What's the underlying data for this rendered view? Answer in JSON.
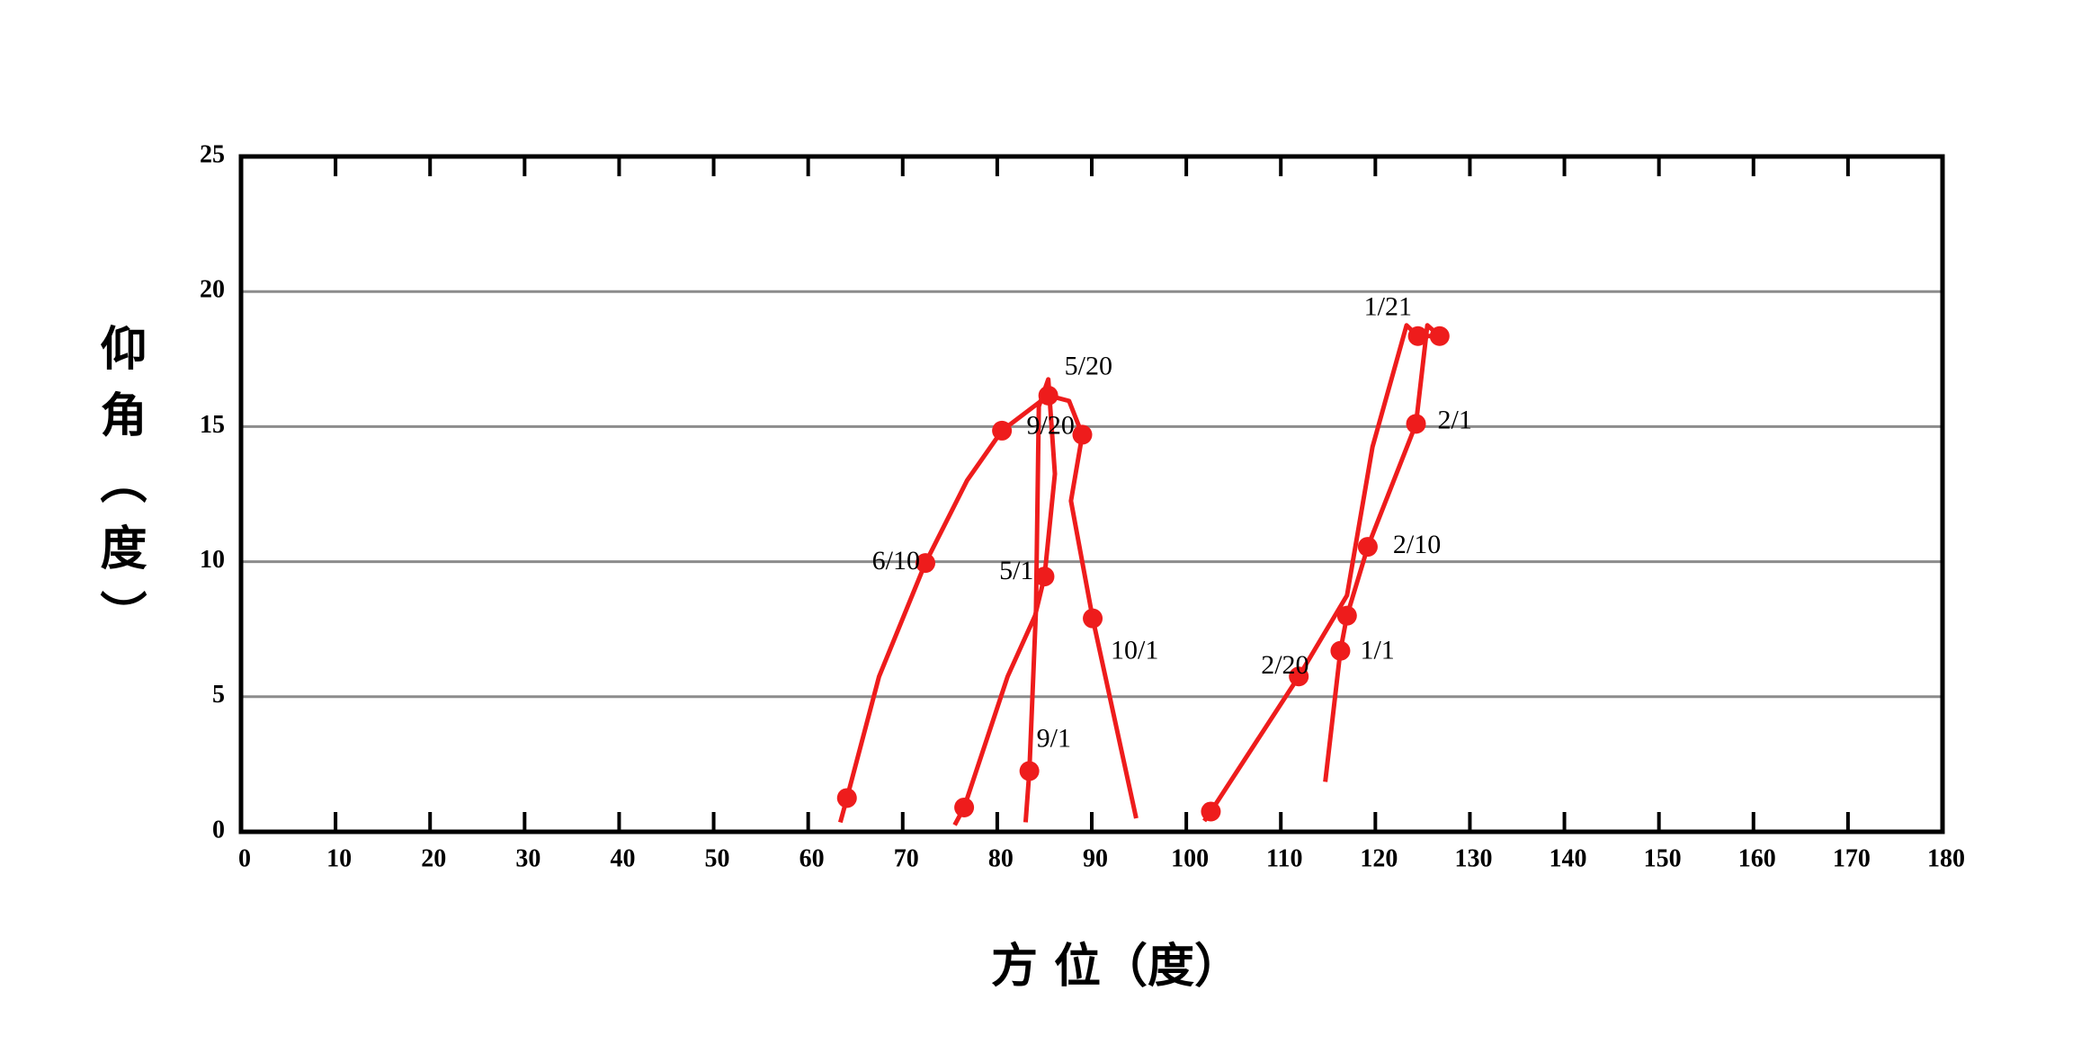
{
  "chart_data": {
    "type": "scatter",
    "x_label": "方 位（度）",
    "y_label": "仰角（度）",
    "xlim": [
      0,
      180
    ],
    "xticks": [
      0,
      10,
      20,
      30,
      40,
      50,
      60,
      70,
      80,
      90,
      100,
      110,
      120,
      130,
      140,
      150,
      160,
      170,
      180
    ],
    "ylim": [
      0,
      25
    ],
    "yticks": [
      0,
      5,
      10,
      15,
      20,
      25
    ],
    "grid": true,
    "color": "#ee1c1c",
    "curves": [
      {
        "x": [
          63.4,
          64.1,
          67.5,
          72.4,
          76.8,
          80.5,
          85.4,
          87.6,
          89,
          87.8,
          90.1,
          94.7
        ],
        "y": [
          0.35,
          1.25,
          5.75,
          9.95,
          13,
          14.85,
          16.15,
          15.95,
          14.7,
          12.25,
          7.9,
          0.5
        ]
      },
      {
        "x": [
          75.5,
          76.5,
          81.1,
          84,
          85,
          86.1,
          85.4,
          84.4,
          84.1,
          83.4,
          83
        ],
        "y": [
          0.25,
          0.9,
          5.75,
          8,
          9.45,
          13.25,
          16.75,
          15.75,
          8.25,
          2.25,
          0.35
        ]
      },
      {
        "x": [
          101.9,
          102.6,
          111.9,
          117,
          119.7,
          123.3,
          124.5,
          126.8,
          125.5,
          124.3,
          119.2,
          117,
          116.3,
          114.7
        ],
        "y": [
          0.4,
          0.75,
          5.75,
          8.75,
          14.25,
          18.75,
          18.35,
          18.35,
          18.75,
          15.1,
          10.55,
          8,
          6.7,
          1.85
        ]
      }
    ],
    "points": {
      "x": [
        64.1,
        76.5,
        83.4,
        80.5,
        72.4,
        85,
        90.1,
        89,
        85.4,
        102.6,
        111.9,
        116.3,
        117,
        119.2,
        124.3,
        124.5,
        126.8
      ],
      "y": [
        1.25,
        0.9,
        2.25,
        14.85,
        9.95,
        9.45,
        7.9,
        14.7,
        16.15,
        0.75,
        5.75,
        6.7,
        8,
        10.55,
        15.1,
        18.35,
        18.35
      ],
      "labels": [
        null,
        null,
        "9/1",
        null,
        "6/10",
        "5/1",
        "10/1",
        "9/20",
        "5/20",
        null,
        "2/20",
        "1/1",
        null,
        "2/10",
        "2/1",
        "1/21",
        null
      ]
    }
  }
}
